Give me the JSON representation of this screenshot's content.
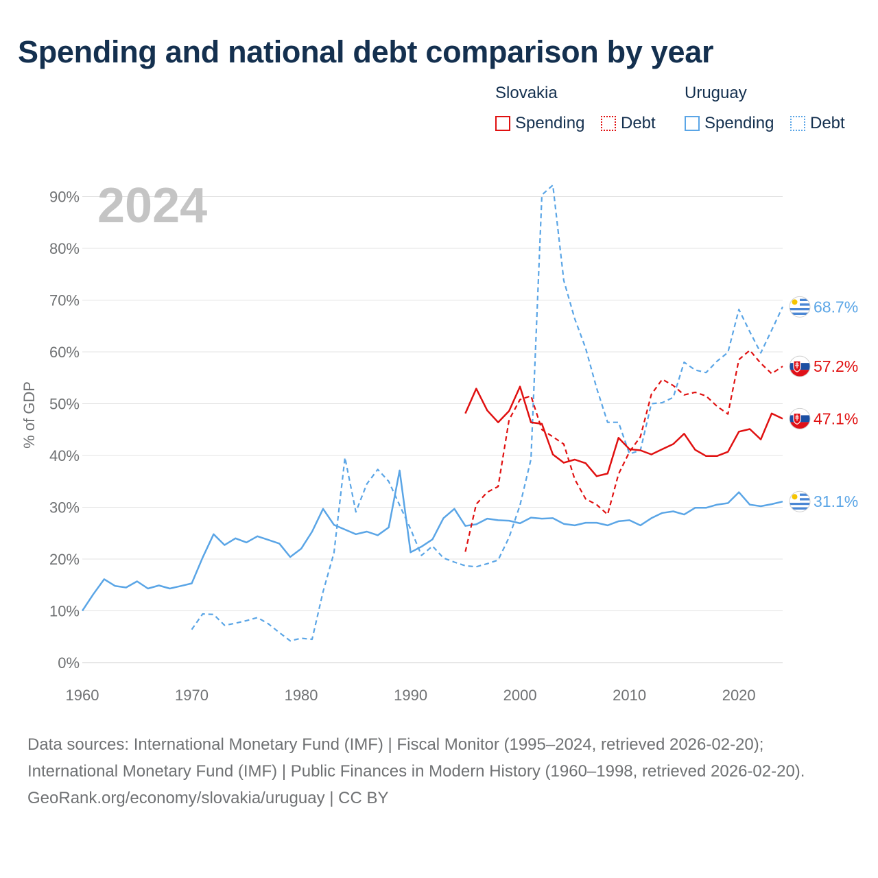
{
  "title": "Spending and national debt comparison by year",
  "legend": {
    "groups": [
      {
        "country": "Slovakia",
        "items": [
          {
            "label": "Spending",
            "style": "solid"
          },
          {
            "label": "Debt",
            "style": "dotted"
          }
        ],
        "color": "#e01010"
      },
      {
        "country": "Uruguay",
        "items": [
          {
            "label": "Spending",
            "style": "solid"
          },
          {
            "label": "Debt",
            "style": "dotted"
          }
        ],
        "color": "#5aa5e6"
      }
    ]
  },
  "footer": {
    "sources": "Data sources: International Monetary Fund (IMF) | Fiscal Monitor (1995–2024, retrieved 2026-02-20); International Monetary Fund (IMF) | Public Finances in Modern History (1960–1998, retrieved 2026-02-20).",
    "credit": "GeoRank.org/economy/slovakia/uruguay | CC BY"
  },
  "colors": {
    "slovakia": "#e01010",
    "uruguay": "#5aa5e6",
    "grid": "#e3e3e3",
    "axis_text": "#6f7173",
    "year_watermark": "#c4c4c4"
  },
  "chart_data": {
    "type": "line",
    "year_label": "2024",
    "ylabel": "% of GDP",
    "xlim": [
      1960,
      2024
    ],
    "ylim": [
      0,
      92
    ],
    "xticks": [
      1960,
      1970,
      1980,
      1990,
      2000,
      2010,
      2020
    ],
    "yticks": [
      0,
      10,
      20,
      30,
      40,
      50,
      60,
      70,
      80,
      90
    ],
    "ytick_labels": [
      "0%",
      "10%",
      "20%",
      "30%",
      "40%",
      "50%",
      "60%",
      "70%",
      "80%",
      "90%"
    ],
    "series": [
      {
        "name": "Uruguay Spending",
        "country": "Uruguay",
        "metric": "Spending",
        "style": "solid",
        "color": "#5aa5e6",
        "end_label": "31.1%",
        "flag": "uruguay-flag",
        "x": [
          1960,
          1961,
          1962,
          1963,
          1964,
          1965,
          1966,
          1967,
          1968,
          1969,
          1970,
          1971,
          1972,
          1973,
          1974,
          1975,
          1976,
          1977,
          1978,
          1979,
          1980,
          1981,
          1982,
          1983,
          1984,
          1985,
          1986,
          1987,
          1988,
          1989,
          1990,
          1991,
          1992,
          1993,
          1994,
          1995,
          1996,
          1997,
          1998,
          1999,
          2000,
          2001,
          2002,
          2003,
          2004,
          2005,
          2006,
          2007,
          2008,
          2009,
          2010,
          2011,
          2012,
          2013,
          2014,
          2015,
          2016,
          2017,
          2018,
          2019,
          2020,
          2021,
          2022,
          2023,
          2024
        ],
        "values": [
          10.0,
          13.2,
          16.1,
          14.8,
          14.5,
          15.7,
          14.3,
          14.9,
          14.3,
          14.8,
          15.3,
          20.3,
          24.8,
          22.7,
          24.0,
          23.2,
          24.4,
          23.7,
          23.0,
          20.4,
          22.0,
          25.3,
          29.7,
          26.6,
          25.7,
          24.8,
          25.3,
          24.6,
          26.1,
          37.1,
          21.3,
          22.4,
          23.8,
          27.9,
          29.7,
          26.4,
          26.7,
          27.8,
          27.5,
          27.4,
          26.9,
          28.0,
          27.8,
          27.9,
          26.8,
          26.5,
          27.0,
          27.0,
          26.5,
          27.3,
          27.5,
          26.5,
          27.9,
          28.9,
          29.2,
          28.6,
          29.9,
          29.9,
          30.5,
          30.8,
          32.9,
          30.5,
          30.2,
          30.6,
          31.1
        ]
      },
      {
        "name": "Uruguay Debt",
        "country": "Uruguay",
        "metric": "Debt",
        "style": "dashed",
        "color": "#5aa5e6",
        "end_label": "68.7%",
        "flag": "uruguay-flag",
        "x": [
          1970,
          1971,
          1972,
          1973,
          1974,
          1975,
          1976,
          1977,
          1978,
          1979,
          1980,
          1981,
          1982,
          1983,
          1984,
          1985,
          1986,
          1987,
          1988,
          1989,
          1990,
          1991,
          1992,
          1993,
          1994,
          1995,
          1996,
          1997,
          1998,
          1999,
          2000,
          2001,
          2002,
          2003,
          2004,
          2005,
          2006,
          2007,
          2008,
          2009,
          2010,
          2011,
          2012,
          2013,
          2014,
          2015,
          2016,
          2017,
          2018,
          2019,
          2020,
          2021,
          2022,
          2023,
          2024
        ],
        "values": [
          6.4,
          9.4,
          9.3,
          7.2,
          7.6,
          8.1,
          8.7,
          7.5,
          5.8,
          4.2,
          4.7,
          4.5,
          13.7,
          21.2,
          39.6,
          29.1,
          34.5,
          37.3,
          35.0,
          30.4,
          25.8,
          20.7,
          22.5,
          20.2,
          19.4,
          18.7,
          18.5,
          19.1,
          19.8,
          24.2,
          30.4,
          39.3,
          90.3,
          92.2,
          73.8,
          66.4,
          60.7,
          53.0,
          46.4,
          46.4,
          40.3,
          41.0,
          50.0,
          50.2,
          51.2,
          58.0,
          56.5,
          56.0,
          58.2,
          59.9,
          68.2,
          63.9,
          59.8,
          64.2,
          68.7
        ]
      },
      {
        "name": "Slovakia Spending",
        "country": "Slovakia",
        "metric": "Spending",
        "style": "solid",
        "color": "#e01010",
        "end_label": "47.1%",
        "flag": "slovakia-flag",
        "x": [
          1995,
          1996,
          1997,
          1998,
          1999,
          2000,
          2001,
          2002,
          2003,
          2004,
          2005,
          2006,
          2007,
          2008,
          2009,
          2010,
          2011,
          2012,
          2013,
          2014,
          2015,
          2016,
          2017,
          2018,
          2019,
          2020,
          2021,
          2022,
          2023,
          2024
        ],
        "values": [
          48.1,
          52.9,
          48.7,
          46.4,
          48.6,
          53.3,
          46.4,
          46.1,
          40.2,
          38.6,
          39.2,
          38.5,
          36.0,
          36.5,
          43.4,
          41.2,
          41.0,
          40.2,
          41.2,
          42.2,
          44.2,
          41.1,
          39.9,
          39.9,
          40.7,
          44.6,
          45.1,
          43.1,
          48.1,
          47.1
        ]
      },
      {
        "name": "Slovakia Debt",
        "country": "Slovakia",
        "metric": "Debt",
        "style": "dashed",
        "color": "#e01010",
        "end_label": "57.2%",
        "flag": "slovakia-flag",
        "x": [
          1995,
          1996,
          1997,
          1998,
          1999,
          2000,
          2001,
          2002,
          2003,
          2004,
          2005,
          2006,
          2007,
          2008,
          2009,
          2010,
          2011,
          2012,
          2013,
          2014,
          2015,
          2016,
          2017,
          2018,
          2019,
          2020,
          2021,
          2022,
          2023,
          2024
        ],
        "values": [
          21.4,
          30.6,
          32.9,
          34.0,
          46.9,
          50.8,
          51.5,
          45.0,
          43.6,
          42.2,
          35.4,
          31.6,
          30.5,
          28.6,
          36.4,
          40.7,
          43.6,
          51.8,
          54.7,
          53.5,
          51.7,
          52.2,
          51.5,
          49.5,
          48.0,
          58.5,
          60.3,
          57.8,
          55.8,
          57.2
        ]
      }
    ]
  }
}
